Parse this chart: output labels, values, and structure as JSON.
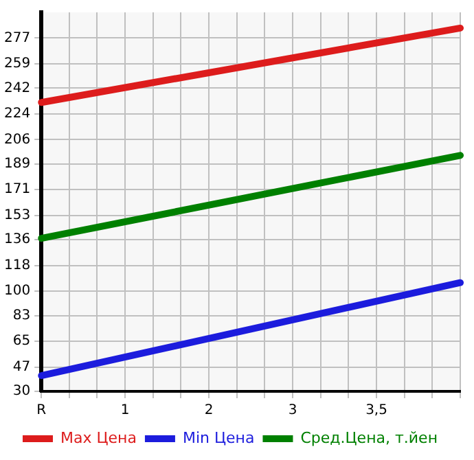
{
  "chart_data": {
    "type": "line",
    "categories": [
      "R",
      null,
      null,
      "1",
      null,
      null,
      "2",
      null,
      null,
      "3",
      null,
      null,
      "3,5",
      null,
      null,
      null
    ],
    "series": [
      {
        "name": "Max Цена",
        "color": "#dd1c1c",
        "values": [
          232,
          null,
          null,
          null,
          null,
          null,
          null,
          null,
          null,
          null,
          null,
          null,
          null,
          null,
          null,
          284
        ]
      },
      {
        "name": "Min Цена",
        "color": "#1c1cdd",
        "values": [
          41,
          null,
          null,
          null,
          null,
          null,
          null,
          null,
          null,
          null,
          null,
          null,
          null,
          null,
          null,
          106
        ]
      },
      {
        "name": "Сред.Цена, т.йен",
        "color": "#008000",
        "values": [
          137,
          null,
          null,
          null,
          null,
          null,
          null,
          null,
          null,
          null,
          null,
          null,
          null,
          null,
          null,
          195
        ]
      }
    ],
    "ylim": [
      30,
      295
    ],
    "yticks": [
      30,
      47,
      65,
      83,
      100,
      118,
      136,
      153,
      171,
      189,
      206,
      224,
      242,
      259,
      277
    ],
    "grid": true,
    "legend": "bottom",
    "marker": "none",
    "line_style": "solid"
  }
}
